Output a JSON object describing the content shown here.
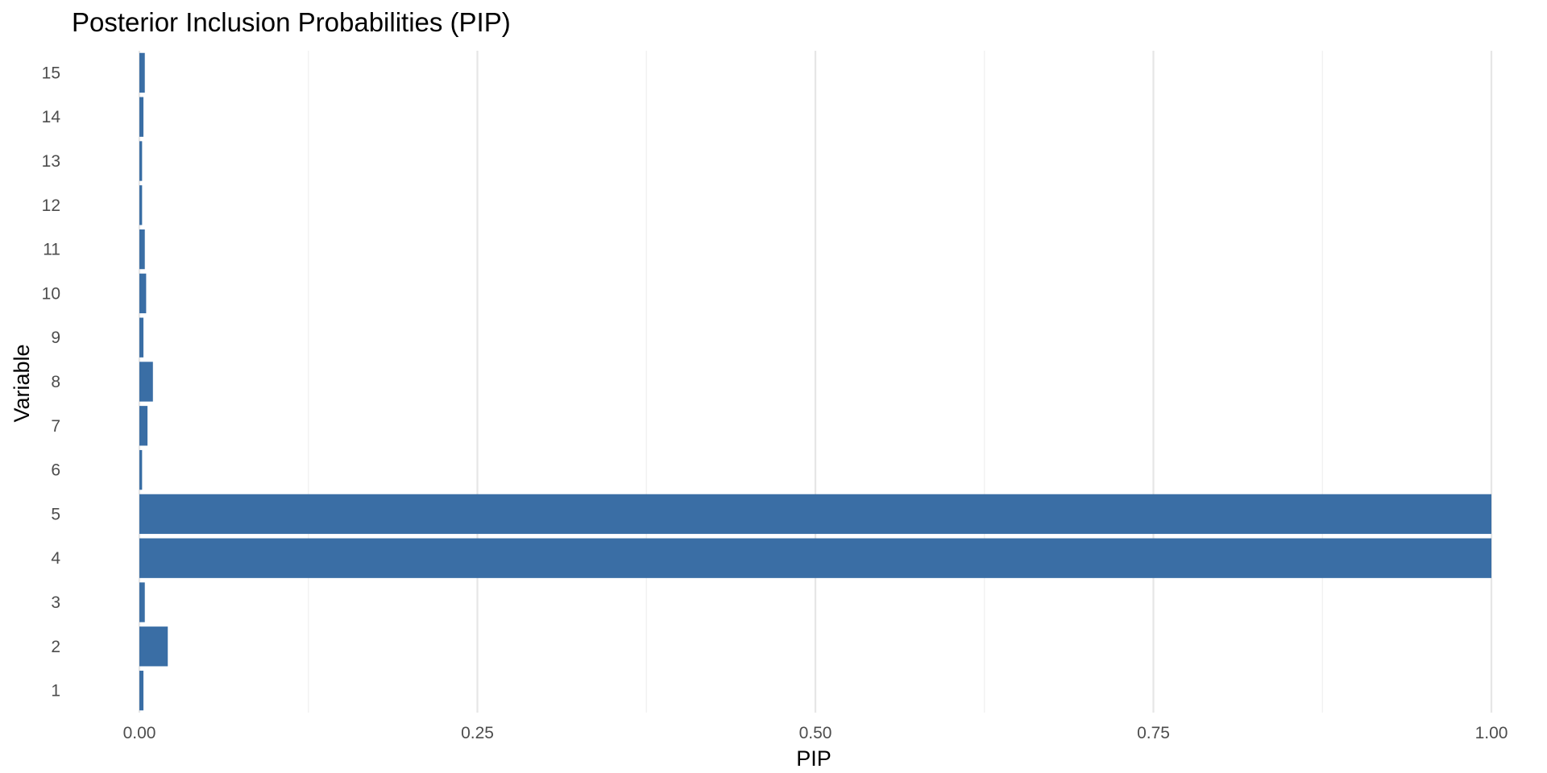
{
  "chart_data": {
    "type": "bar",
    "orientation": "horizontal",
    "title": "Posterior Inclusion Probabilities (PIP)",
    "xlabel": "PIP",
    "ylabel": "Variable",
    "categories": [
      "1",
      "2",
      "3",
      "4",
      "5",
      "6",
      "7",
      "8",
      "9",
      "10",
      "11",
      "12",
      "13",
      "14",
      "15"
    ],
    "values": [
      0.003,
      0.021,
      0.004,
      1.0,
      1.0,
      0.002,
      0.006,
      0.01,
      0.003,
      0.005,
      0.004,
      0.002,
      0.002,
      0.003,
      0.004
    ],
    "xlim": [
      0,
      1
    ],
    "xticks": [
      0,
      0.25,
      0.5,
      0.75,
      1
    ],
    "xtick_labels": [
      "0.00",
      "0.25",
      "0.50",
      "0.75",
      "1.00"
    ],
    "bar_color": "#3A6EA5",
    "grid": true,
    "legend": "none"
  }
}
